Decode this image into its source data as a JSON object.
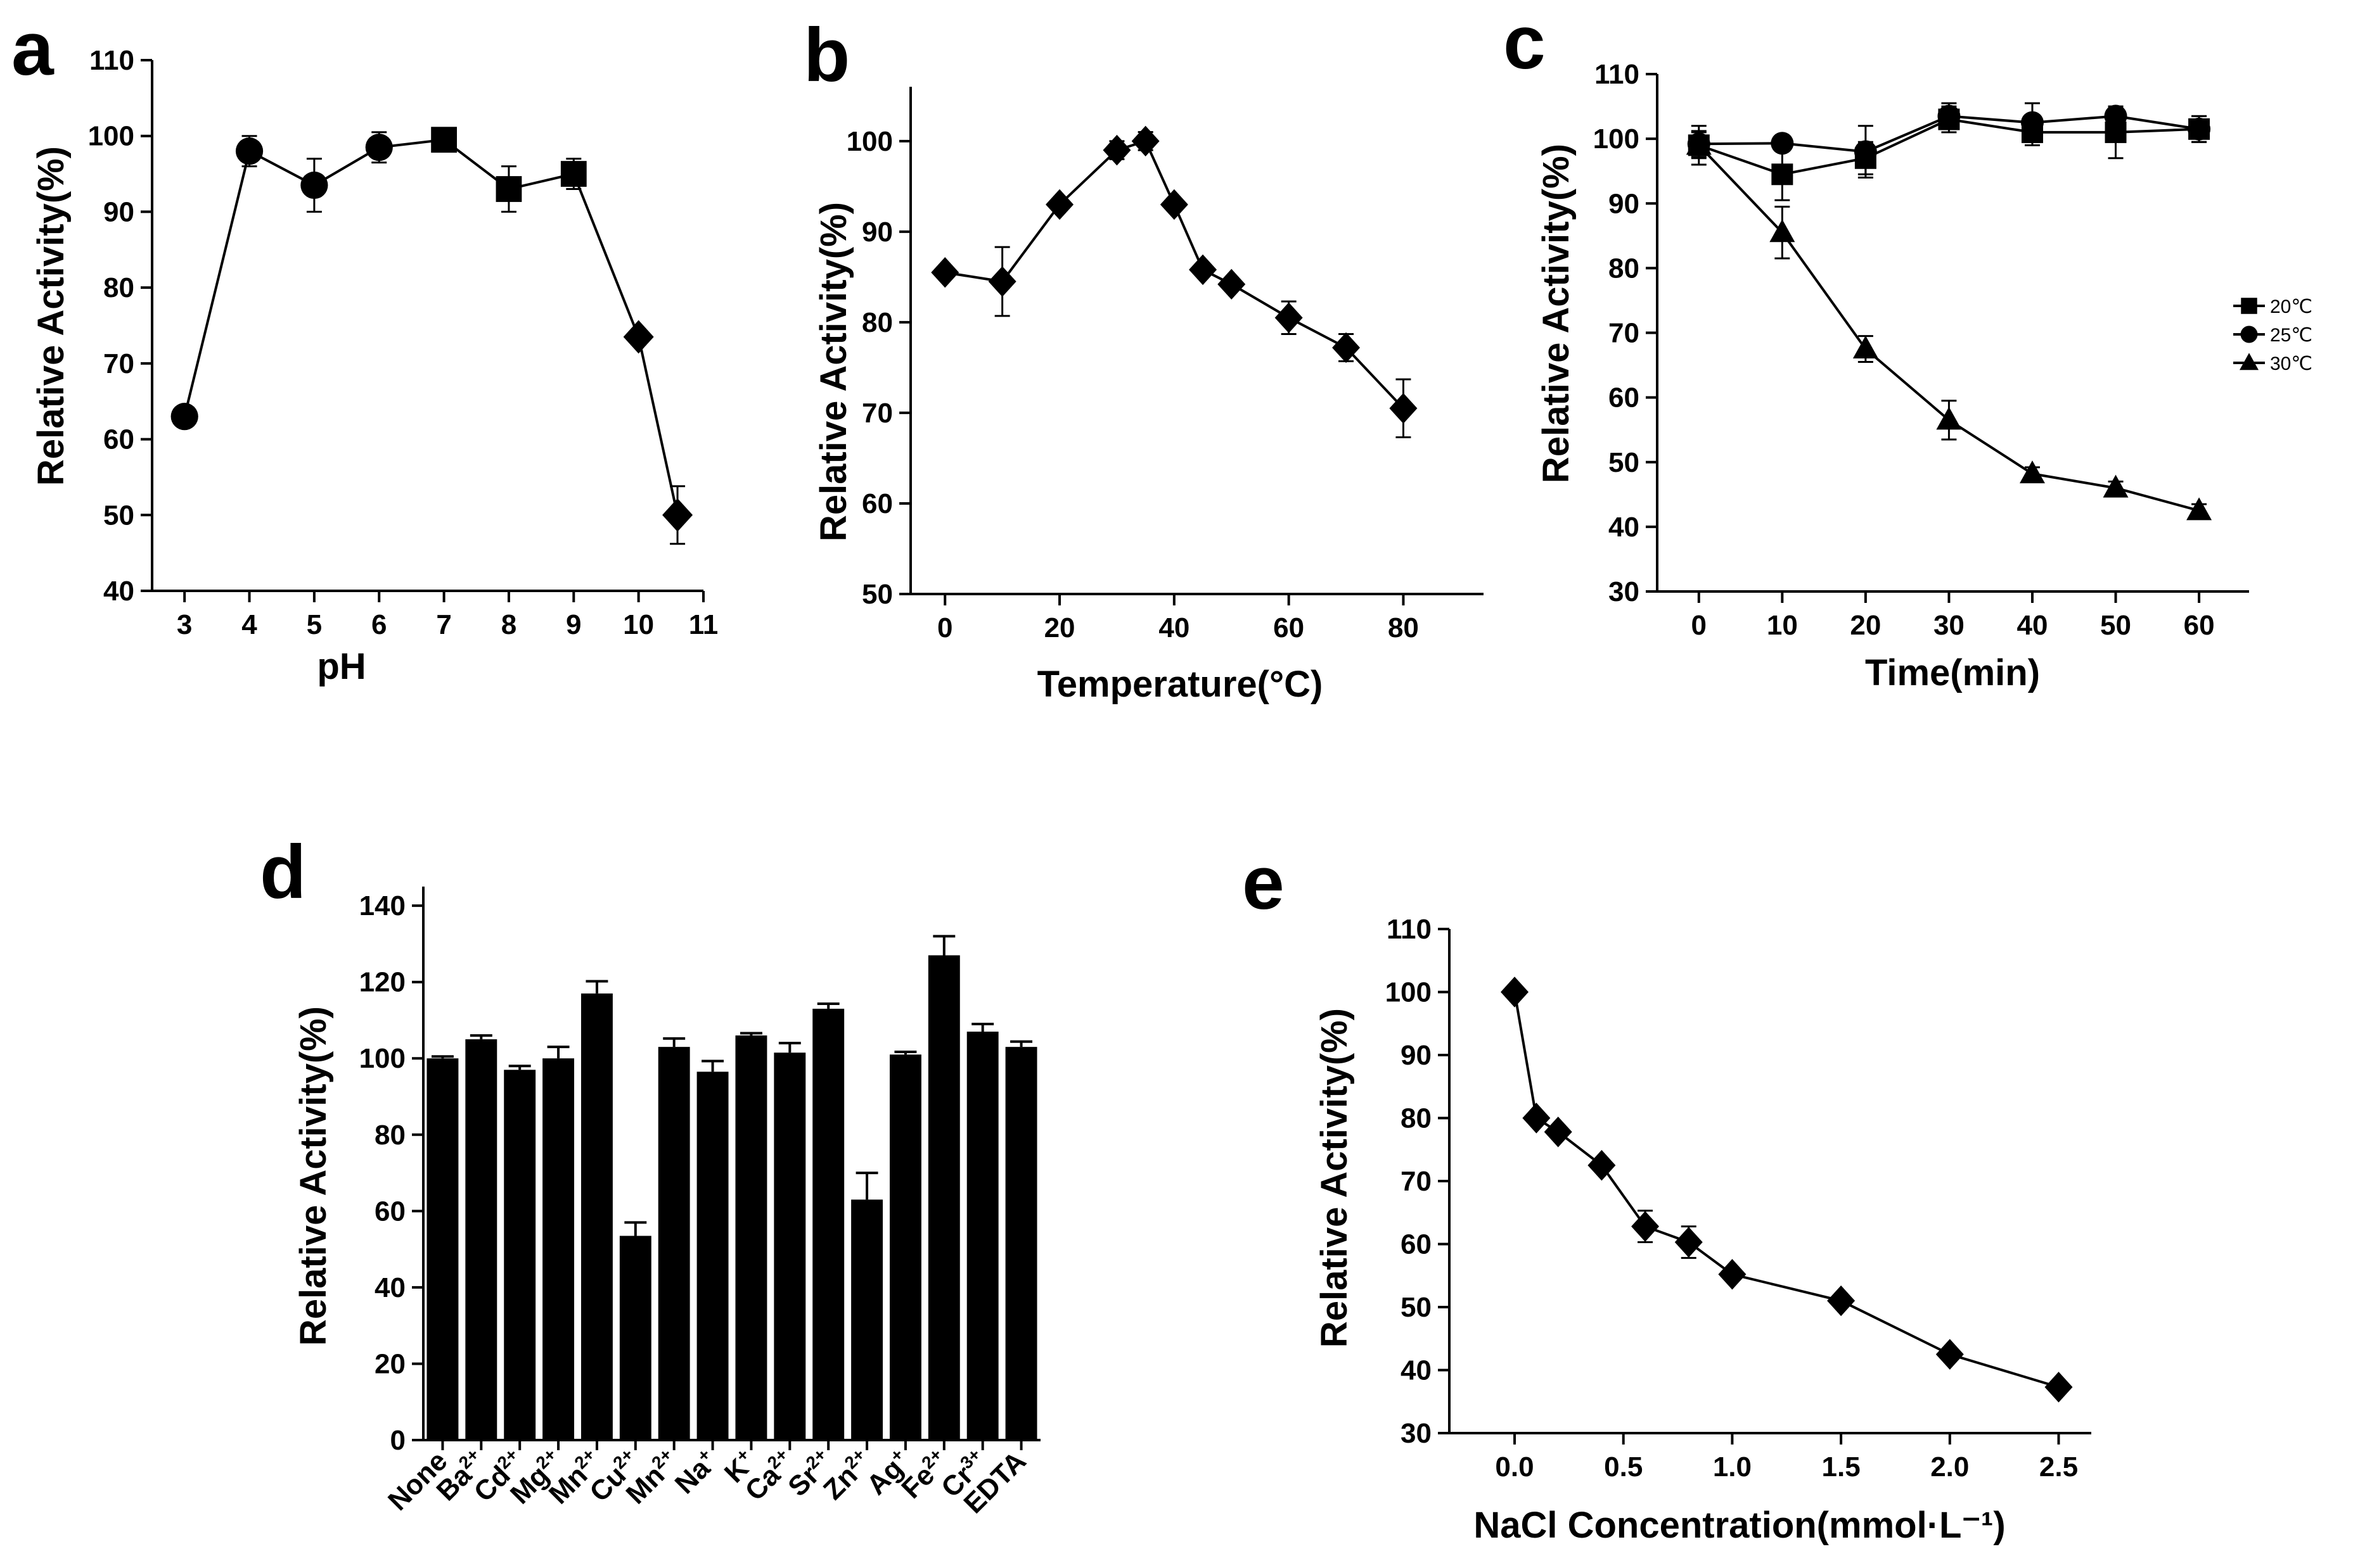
{
  "chart_data": [
    {
      "panel_label": "a",
      "type": "line",
      "xlabel": "pH",
      "ylabel": "Relative Activity(%)",
      "xlim": [
        2.5,
        11
      ],
      "ylim": [
        40,
        110
      ],
      "xticks": [
        3,
        4,
        5,
        6,
        7,
        8,
        9,
        10,
        11
      ],
      "yticks": [
        40,
        50,
        60,
        70,
        80,
        90,
        100,
        110
      ],
      "points": [
        {
          "x": 3,
          "y": 63,
          "err": 1,
          "marker": "circle"
        },
        {
          "x": 4,
          "y": 98,
          "err": 2,
          "marker": "circle"
        },
        {
          "x": 5,
          "y": 93.5,
          "err": 3.5,
          "marker": "circle"
        },
        {
          "x": 6,
          "y": 98.5,
          "err": 2,
          "marker": "circle"
        },
        {
          "x": 7,
          "y": 99.5,
          "err": 1,
          "marker": "square"
        },
        {
          "x": 8,
          "y": 93,
          "err": 3,
          "marker": "square"
        },
        {
          "x": 9,
          "y": 95,
          "err": 2,
          "marker": "square"
        },
        {
          "x": 10,
          "y": 73.5,
          "err": 1,
          "marker": "diamond"
        },
        {
          "x": 10.6,
          "y": 50,
          "err": 3.8,
          "marker": "diamond"
        }
      ]
    },
    {
      "panel_label": "b",
      "type": "line",
      "xlabel": "Temperature(°C)",
      "ylabel": "Relative Activity(%)",
      "xlim": [
        -6,
        94
      ],
      "ylim": [
        50,
        106
      ],
      "xticks": [
        0,
        20,
        40,
        60,
        80
      ],
      "yticks": [
        50,
        60,
        70,
        80,
        90,
        100
      ],
      "points": [
        {
          "x": 0,
          "y": 85.5,
          "err": 0
        },
        {
          "x": 10,
          "y": 84.5,
          "err": 3.8
        },
        {
          "x": 20,
          "y": 93,
          "err": 0
        },
        {
          "x": 30,
          "y": 99,
          "err": 1
        },
        {
          "x": 35,
          "y": 100,
          "err": 1
        },
        {
          "x": 40,
          "y": 93,
          "err": 0
        },
        {
          "x": 45,
          "y": 85.8,
          "err": 0
        },
        {
          "x": 50,
          "y": 84.2,
          "err": 0
        },
        {
          "x": 60,
          "y": 80.5,
          "err": 1.8
        },
        {
          "x": 70,
          "y": 77.2,
          "err": 1.5
        },
        {
          "x": 80,
          "y": 70.5,
          "err": 3.2
        }
      ]
    },
    {
      "panel_label": "c",
      "type": "line",
      "xlabel": "Time(min)",
      "ylabel": "Relative Activity(%)",
      "xlim": [
        -5,
        66
      ],
      "ylim": [
        30,
        110
      ],
      "xticks": [
        0,
        10,
        20,
        30,
        40,
        50,
        60
      ],
      "yticks": [
        30,
        40,
        50,
        60,
        70,
        80,
        90,
        100,
        110
      ],
      "x": [
        0,
        10,
        20,
        30,
        40,
        50,
        60
      ],
      "series": [
        {
          "name": "20℃",
          "marker": "square",
          "values": [
            99,
            94.5,
            97,
            103,
            101,
            101,
            101.5
          ],
          "err": [
            3,
            4,
            2.5,
            2,
            2,
            4,
            2
          ]
        },
        {
          "name": "25℃",
          "marker": "circle",
          "values": [
            99.2,
            99.3,
            98,
            103.5,
            102.5,
            103.5,
            101.5
          ],
          "err": [
            2,
            1,
            4,
            2,
            3,
            1.5,
            2
          ]
        },
        {
          "name": "30℃",
          "marker": "triangle",
          "values": [
            99,
            85.5,
            67.5,
            56.5,
            48.2,
            46,
            42.5
          ],
          "err": [
            2,
            4,
            2,
            3,
            1,
            1,
            1
          ]
        }
      ]
    },
    {
      "panel_label": "d",
      "type": "bar",
      "ylabel": "Relative Activity(%)",
      "ylim": [
        0,
        145
      ],
      "yticks": [
        0,
        20,
        40,
        60,
        80,
        100,
        120,
        140
      ],
      "categories": [
        {
          "base": "None",
          "sup": ""
        },
        {
          "base": "Ba",
          "sup": "2+"
        },
        {
          "base": "Cd",
          "sup": "2+"
        },
        {
          "base": "Mg",
          "sup": "2+"
        },
        {
          "base": "Mn",
          "sup": "2+"
        },
        {
          "base": "Cu",
          "sup": "2+"
        },
        {
          "base": "Mn",
          "sup": "2+"
        },
        {
          "base": "Na",
          "sup": "+"
        },
        {
          "base": "K",
          "sup": "+"
        },
        {
          "base": "Ca",
          "sup": "2+"
        },
        {
          "base": "Sr",
          "sup": "2+"
        },
        {
          "base": "Zn",
          "sup": "2+"
        },
        {
          "base": "Ag",
          "sup": "+"
        },
        {
          "base": "Fe",
          "sup": "2+"
        },
        {
          "base": "Cr",
          "sup": "3+"
        },
        {
          "base": "EDTA",
          "sup": ""
        }
      ],
      "values": [
        100,
        105,
        97,
        100,
        117,
        53.5,
        103,
        96.5,
        106,
        101.5,
        113,
        63,
        101,
        127,
        107,
        103
      ],
      "err": [
        0.5,
        1,
        1,
        3,
        3.2,
        3.5,
        2.2,
        2.8,
        0.6,
        2.5,
        1.3,
        7,
        0.7,
        5,
        2,
        1.4
      ]
    },
    {
      "panel_label": "e",
      "type": "line",
      "xlabel": "NaCl Concentration(mmol·L⁻¹)",
      "ylabel": "Relative Activity(%)",
      "xlim": [
        -0.3,
        2.65
      ],
      "ylim": [
        30,
        110
      ],
      "xticks": [
        "0.0",
        "0.5",
        "1.0",
        "1.5",
        "2.0",
        "2.5"
      ],
      "yticks": [
        30,
        40,
        50,
        60,
        70,
        80,
        90,
        100,
        110
      ],
      "points": [
        {
          "x": 0,
          "y": 100,
          "err": 0
        },
        {
          "x": 0.1,
          "y": 80,
          "err": 0
        },
        {
          "x": 0.2,
          "y": 77.8,
          "err": 0
        },
        {
          "x": 0.4,
          "y": 72.5,
          "err": 0
        },
        {
          "x": 0.6,
          "y": 62.8,
          "err": 2.5
        },
        {
          "x": 0.8,
          "y": 60.3,
          "err": 2.5
        },
        {
          "x": 1.0,
          "y": 55.2,
          "err": 0
        },
        {
          "x": 1.5,
          "y": 51,
          "err": 0
        },
        {
          "x": 2.0,
          "y": 42.5,
          "err": 0
        },
        {
          "x": 2.5,
          "y": 37.3,
          "err": 0
        }
      ]
    }
  ]
}
